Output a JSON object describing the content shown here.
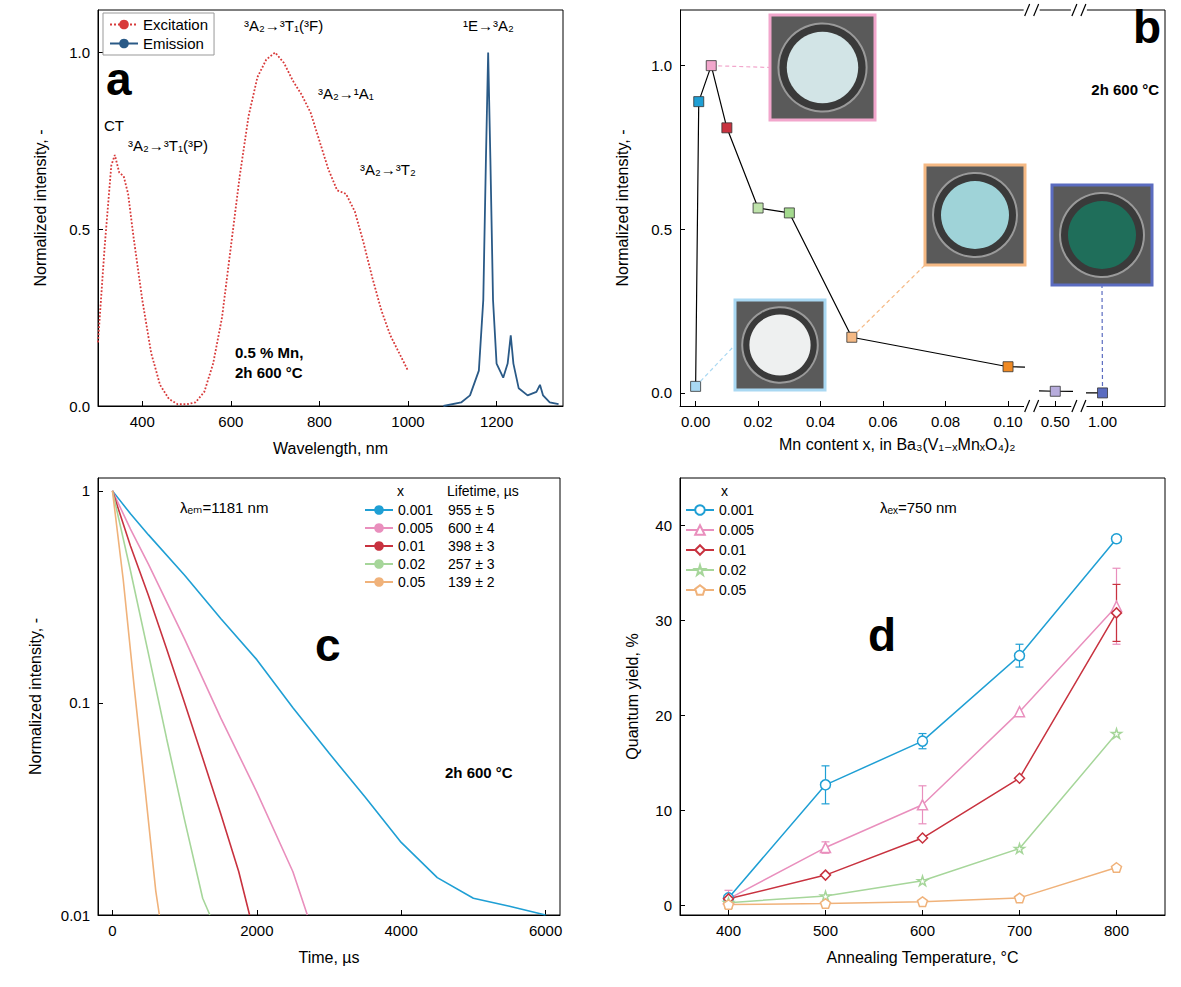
{
  "chart_data": [
    {
      "type": "line",
      "panel_label": "a",
      "x_label": "Wavelength, nm",
      "y_label": "Normalized intensity, -",
      "xlim": [
        300,
        1350
      ],
      "xticks": [
        400,
        600,
        800,
        1000,
        1200
      ],
      "ylim": [
        0,
        1.12
      ],
      "yticks": [
        {
          "value": 0,
          "label": "0.0"
        },
        {
          "value": 0.5,
          "label": "0.5"
        },
        {
          "value": 1,
          "label": "1.0"
        }
      ],
      "grid": false,
      "legend": "upper left",
      "series": [
        {
          "name": "Excitation",
          "color": "#d83a3a",
          "line_style": "dotted",
          "x": [
            300,
            315,
            330,
            338,
            348,
            358,
            368,
            380,
            400,
            420,
            440,
            460,
            480,
            500,
            520,
            540,
            560,
            580,
            600,
            620,
            640,
            660,
            680,
            700,
            720,
            740,
            760,
            780,
            800,
            820,
            840,
            860,
            880,
            900,
            920,
            940,
            960,
            980,
            1000
          ],
          "values": [
            0.18,
            0.45,
            0.68,
            0.71,
            0.66,
            0.65,
            0.6,
            0.48,
            0.3,
            0.15,
            0.06,
            0.02,
            0.005,
            0.005,
            0.01,
            0.04,
            0.12,
            0.25,
            0.45,
            0.65,
            0.82,
            0.93,
            0.98,
            1.0,
            0.97,
            0.92,
            0.88,
            0.83,
            0.75,
            0.67,
            0.61,
            0.6,
            0.55,
            0.46,
            0.36,
            0.27,
            0.2,
            0.15,
            0.1
          ]
        },
        {
          "name": "Emission",
          "color": "#2a5a87",
          "line_style": "solid",
          "x": [
            1080,
            1120,
            1140,
            1160,
            1170,
            1176,
            1181,
            1186,
            1192,
            1200,
            1215,
            1225,
            1232,
            1238,
            1250,
            1270,
            1290,
            1298,
            1305,
            1320,
            1340
          ],
          "values": [
            0,
            0.01,
            0.03,
            0.1,
            0.3,
            0.7,
            1.0,
            0.7,
            0.3,
            0.12,
            0.08,
            0.12,
            0.2,
            0.12,
            0.05,
            0.03,
            0.04,
            0.06,
            0.03,
            0.01,
            0.005
          ]
        }
      ],
      "annotations": [
        "CT",
        "³A₂→³T₁(³P)",
        "³A₂→³T₁(³F)",
        "³A₂→¹A₁",
        "³A₂→³T₂",
        "¹E→³A₂",
        "0.5 % Mn,",
        "2h 600 °C"
      ]
    },
    {
      "type": "line",
      "panel_label": "b",
      "x_label": "Mn content x, in Ba₃(V₁₋ₓMnₓO₄)₂",
      "y_label": "Normalized intensity, -",
      "xlim": [
        -0.005,
        1.02
      ],
      "xticks": [
        {
          "value": 0,
          "label": "0.00"
        },
        {
          "value": 0.02,
          "label": "0.02"
        },
        {
          "value": 0.04,
          "label": "0.04"
        },
        {
          "value": 0.06,
          "label": "0.06"
        },
        {
          "value": 0.08,
          "label": "0.08"
        },
        {
          "value": 0.1,
          "label": "0.10"
        },
        {
          "value": 0.5,
          "label": "0.50"
        },
        {
          "value": 1,
          "label": "1.00"
        }
      ],
      "ylim": [
        -0.04,
        1.17
      ],
      "yticks": [
        {
          "value": 0,
          "label": "0.0"
        },
        {
          "value": 0.5,
          "label": "0.5"
        },
        {
          "value": 1,
          "label": "1.0"
        }
      ],
      "grid": false,
      "marker": "square",
      "color": "#000000",
      "x": [
        0,
        0.001,
        0.005,
        0.01,
        0.02,
        0.03,
        0.05,
        0.1,
        0.5,
        1
      ],
      "values": [
        0.02,
        0.89,
        1.0,
        0.81,
        0.565,
        0.55,
        0.17,
        0.08,
        0.005,
        0
      ],
      "colors": [
        "#a9d8f2",
        "#1f9fd4",
        "#f2a6cc",
        "#c8323f",
        "#bfe3ab",
        "#a3d98e",
        "#f5b984",
        "#f08a24",
        "#b7acdc",
        "#5b6cc0"
      ],
      "annotations": [
        "2h 600 °C"
      ]
    },
    {
      "type": "line",
      "panel_label": "c",
      "x_label": "Time, µs",
      "y_label": "Normalized intensity, -",
      "log": "y",
      "xlim": [
        -200,
        6200
      ],
      "xticks": [
        0,
        2000,
        4000,
        6000
      ],
      "ylim": [
        0.01,
        1.15
      ],
      "yticks": [
        0.01,
        0.1,
        1
      ],
      "grid": false,
      "legend": "upper right",
      "legend_header": [
        "x",
        "Lifetime, µs"
      ],
      "series": [
        {
          "name": "0.001",
          "color": "#1f9fd4",
          "lifetime": {
            "value": 955,
            "error": 5,
            "label": "955 ± 5"
          },
          "x": [
            0,
            250,
            500,
            1000,
            1500,
            2000,
            2500,
            3000,
            3500,
            4000,
            4500,
            5000,
            5500,
            6000
          ],
          "values": [
            1,
            0.78,
            0.62,
            0.4,
            0.25,
            0.16,
            0.095,
            0.058,
            0.036,
            0.022,
            0.015,
            0.012,
            0.011,
            0.01
          ]
        },
        {
          "name": "0.005",
          "color": "#e98fbd",
          "lifetime": {
            "value": 600,
            "error": 4,
            "label": "600 ± 4"
          },
          "x": [
            0,
            250,
            500,
            1000,
            1500,
            2000,
            2500,
            2700
          ],
          "values": [
            1,
            0.66,
            0.45,
            0.2,
            0.085,
            0.038,
            0.016,
            0.01
          ]
        },
        {
          "name": "0.01",
          "color": "#c8323f",
          "lifetime": {
            "value": 398,
            "error": 3,
            "label": "398 ± 3"
          },
          "x": [
            0,
            250,
            500,
            750,
            1000,
            1250,
            1500,
            1750,
            1900
          ],
          "values": [
            1,
            0.55,
            0.32,
            0.18,
            0.1,
            0.055,
            0.03,
            0.016,
            0.01
          ]
        },
        {
          "name": "0.02",
          "color": "#a6d69a",
          "lifetime": {
            "value": 257,
            "error": 3,
            "label": "257 ± 3"
          },
          "x": [
            0,
            250,
            500,
            750,
            1000,
            1250,
            1350
          ],
          "values": [
            1,
            0.42,
            0.17,
            0.068,
            0.028,
            0.012,
            0.01
          ]
        },
        {
          "name": "0.05",
          "color": "#f0b27a",
          "lifetime": {
            "value": 139,
            "error": 2,
            "label": "139 ± 2"
          },
          "x": [
            0,
            150,
            300,
            450,
            600,
            650
          ],
          "values": [
            1,
            0.38,
            0.12,
            0.04,
            0.013,
            0.01
          ]
        }
      ],
      "annotations": [
        "λₑₘ=1181 nm",
        "2h 600 °C"
      ]
    },
    {
      "type": "line",
      "panel_label": "d",
      "x_label": "Annealing Temperature, °C",
      "y_label": "Quantum yield, %",
      "xlim": [
        350,
        850
      ],
      "xticks": [
        400,
        500,
        600,
        700,
        800
      ],
      "ylim": [
        -1,
        45
      ],
      "yticks": [
        0,
        10,
        20,
        30,
        40
      ],
      "grid": false,
      "legend": "upper left",
      "legend_header": [
        "x"
      ],
      "x": [
        400,
        500,
        600,
        700,
        800
      ],
      "series": [
        {
          "name": "0.001",
          "color": "#1f9fd4",
          "marker": "circle",
          "values": [
            0.8,
            12.7,
            17.3,
            26.3,
            38.6
          ],
          "errors": [
            null,
            2.0,
            0.8,
            1.2,
            null
          ]
        },
        {
          "name": "0.005",
          "color": "#e98fbd",
          "marker": "triangle",
          "values": [
            0.7,
            6.1,
            10.6,
            20.4,
            31.5
          ],
          "errors": [
            0.9,
            0.6,
            2.0,
            null,
            4.0
          ]
        },
        {
          "name": "0.01",
          "color": "#c8323f",
          "marker": "diamond",
          "values": [
            0.7,
            3.2,
            7.1,
            13.4,
            30.8
          ],
          "errors": [
            null,
            null,
            null,
            null,
            3.0
          ]
        },
        {
          "name": "0.02",
          "color": "#a6d69a",
          "marker": "star",
          "values": [
            0.3,
            1.0,
            2.6,
            6.0,
            18.1
          ],
          "errors": [
            null,
            null,
            null,
            null,
            null
          ]
        },
        {
          "name": "0.05",
          "color": "#f0b27a",
          "marker": "pentagon",
          "values": [
            0.1,
            0.2,
            0.4,
            0.8,
            4.0
          ],
          "errors": [
            null,
            null,
            null,
            null,
            null
          ]
        }
      ],
      "annotations": [
        "λₑₓ=750 nm"
      ]
    }
  ]
}
